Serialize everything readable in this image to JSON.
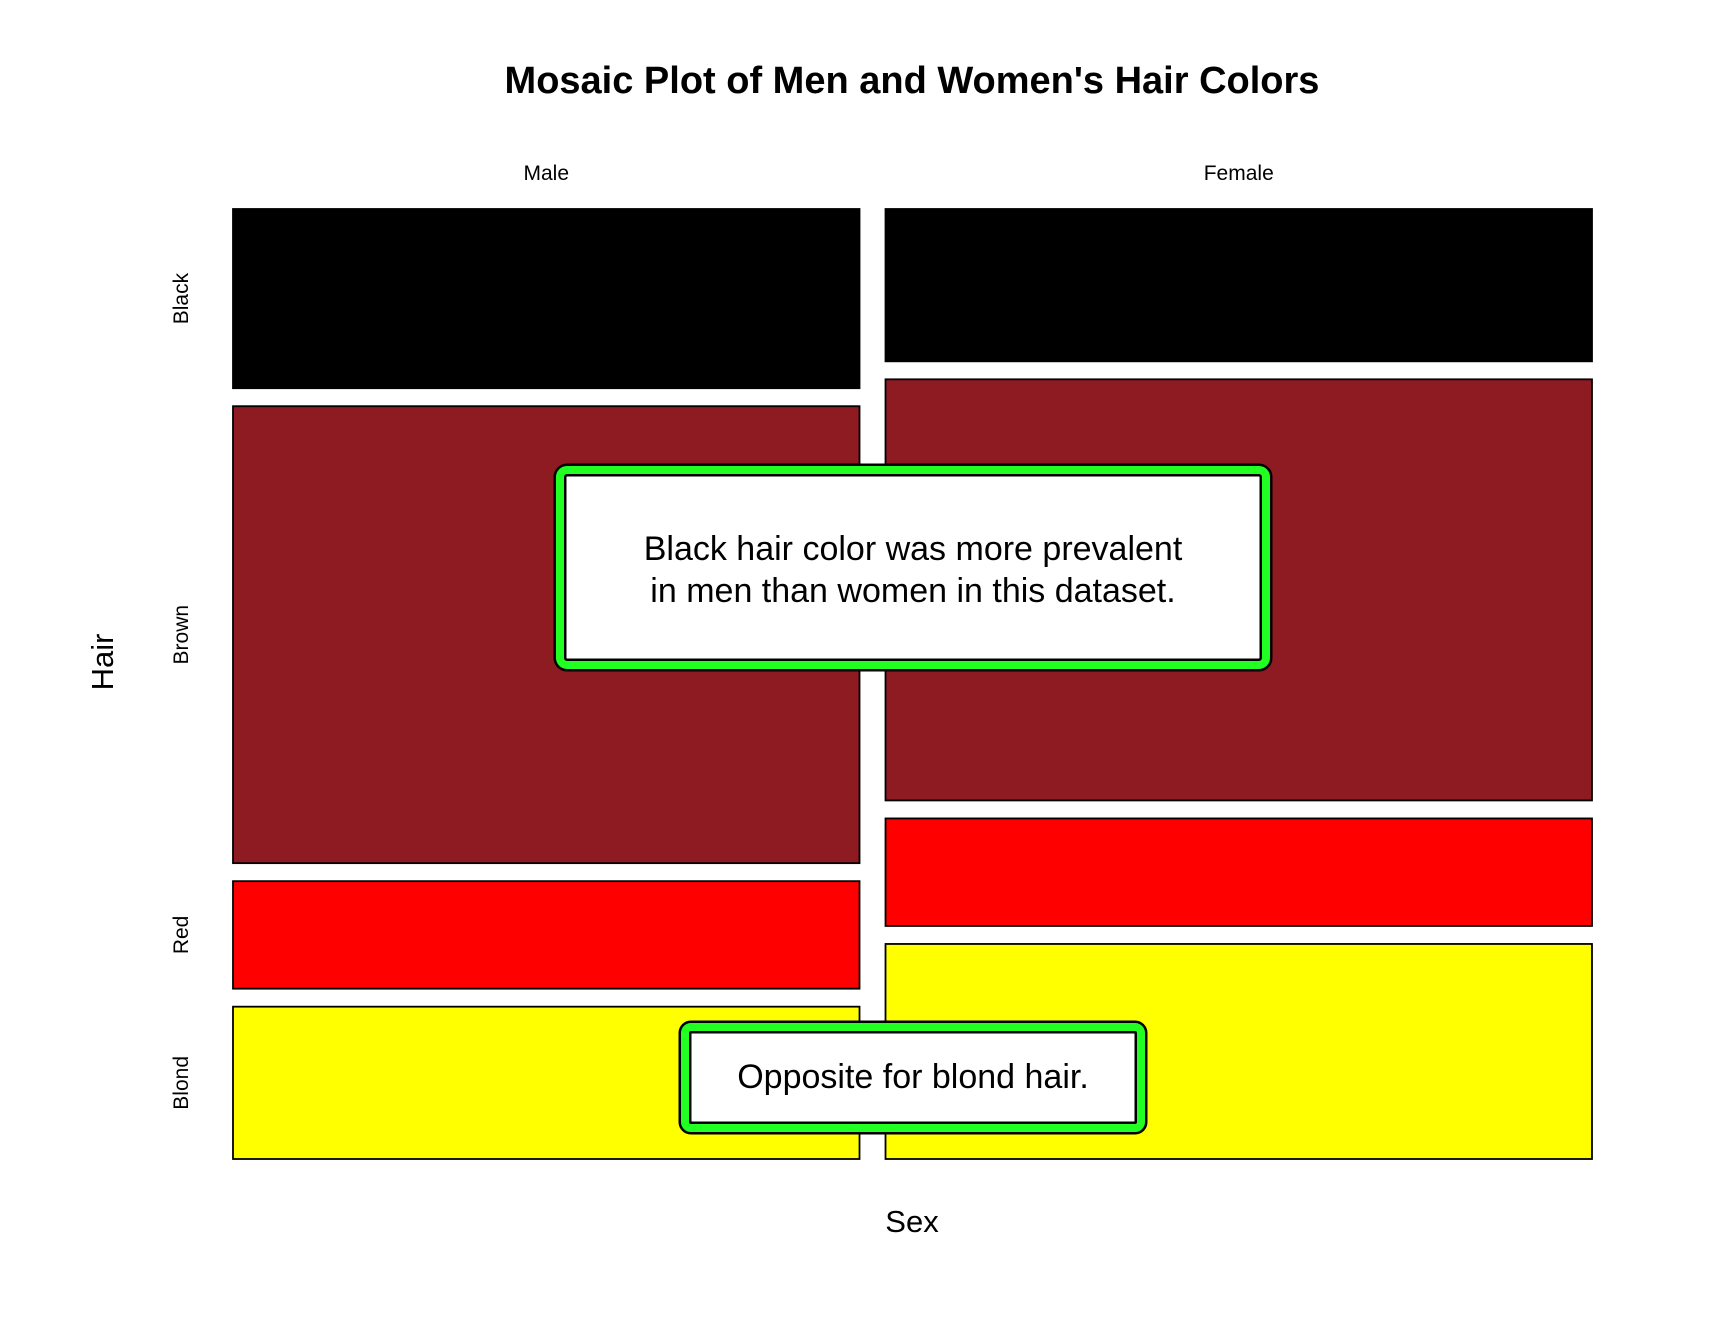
{
  "chart_data": {
    "type": "mosaic",
    "title": "Mosaic Plot of Men and Women's Hair Colors",
    "xlabel": "Sex",
    "ylabel": "Hair",
    "columns": [
      {
        "label": "Male",
        "share": 0.47
      },
      {
        "label": "Female",
        "share": 0.53
      }
    ],
    "rows": [
      {
        "label": "Black",
        "color": "#000000"
      },
      {
        "label": "Brown",
        "color": "#8e1a22"
      },
      {
        "label": "Red",
        "color": "#ff0000"
      },
      {
        "label": "Blond",
        "color": "#ffff00"
      }
    ],
    "proportions": {
      "Male": [
        0.2,
        0.51,
        0.12,
        0.17
      ],
      "Female": [
        0.17,
        0.47,
        0.12,
        0.24
      ]
    }
  },
  "annotations": [
    {
      "lines": [
        "Black hair color was more prevalent",
        "in men than women in this dataset."
      ]
    },
    {
      "lines": [
        "Opposite for blond hair."
      ]
    }
  ],
  "callout_border_color": "#22ff22"
}
